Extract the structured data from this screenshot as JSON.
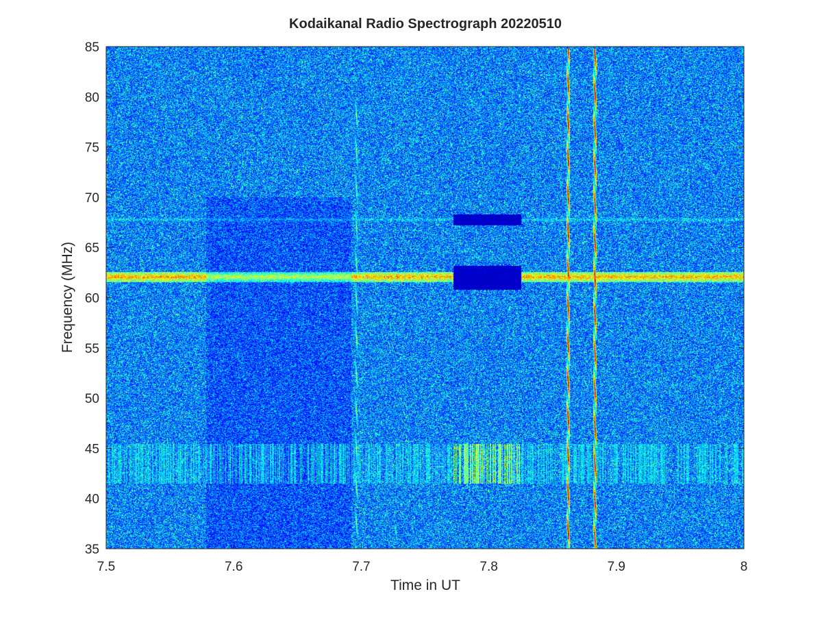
{
  "chart_data": {
    "type": "heatmap",
    "title": "Kodaikanal Radio Spectrograph  20220510",
    "xlabel": "Time in UT",
    "ylabel": "Frequency (MHz)",
    "xlim": [
      7.5,
      8
    ],
    "ylim": [
      35,
      85
    ],
    "xticks": [
      7.5,
      7.6,
      7.7,
      7.8,
      7.9,
      8
    ],
    "xtick_labels": [
      "7.5",
      "7.6",
      "7.7",
      "7.8",
      "7.9",
      "8"
    ],
    "yticks": [
      35,
      40,
      45,
      50,
      55,
      60,
      65,
      70,
      75,
      80,
      85
    ],
    "ytick_labels": [
      "35",
      "40",
      "45",
      "50",
      "55",
      "60",
      "65",
      "70",
      "75",
      "80",
      "85"
    ],
    "colormap": "jet",
    "background_level": 0.15,
    "features": [
      {
        "kind": "horizontal-band",
        "freq": 62.1,
        "freq_halfwidth": 0.5,
        "segments": [
          [
            7.5,
            7.772
          ],
          [
            7.825,
            8.0
          ]
        ],
        "level": 0.7
      },
      {
        "kind": "horizontal-band",
        "freq": 67.8,
        "freq_halfwidth": 0.3,
        "segments": [
          [
            7.5,
            7.772
          ],
          [
            7.825,
            8.0
          ]
        ],
        "level": 0.35
      },
      {
        "kind": "dark-gap",
        "freq_range": [
          60.8,
          63.2
        ],
        "time_range": [
          7.772,
          7.825
        ]
      },
      {
        "kind": "dark-gap",
        "freq_range": [
          67.2,
          68.3
        ],
        "time_range": [
          7.772,
          7.825
        ]
      },
      {
        "kind": "dark-region",
        "time_range": [
          7.578,
          7.692
        ],
        "freq_range": [
          35,
          70
        ]
      },
      {
        "kind": "vertical-burst",
        "time": 7.862,
        "freq_range": [
          35,
          84.8
        ],
        "level": 0.9
      },
      {
        "kind": "vertical-burst",
        "time": 7.883,
        "freq_range": [
          35,
          84.8
        ],
        "level": 0.9
      },
      {
        "kind": "vertical-burst",
        "time": 7.696,
        "freq_range": [
          35,
          80
        ],
        "level": 0.45
      },
      {
        "kind": "vertical-burst",
        "time": 7.727,
        "freq_range": [
          35,
          37.5
        ],
        "level": 0.4
      },
      {
        "kind": "rfi-band",
        "freq_range": [
          41.5,
          45.5
        ],
        "time_range": [
          7.5,
          8.0
        ],
        "level": 0.35
      },
      {
        "kind": "rfi-band",
        "freq_range": [
          41.5,
          45.5
        ],
        "time_range": [
          7.772,
          7.825
        ],
        "level": 0.5
      }
    ],
    "grid": false,
    "legend": "none"
  }
}
